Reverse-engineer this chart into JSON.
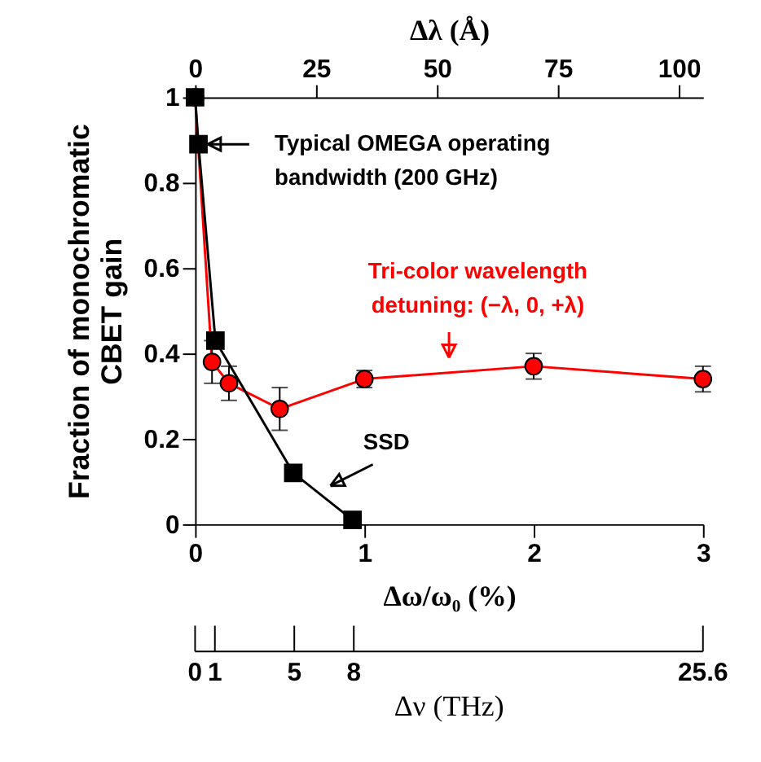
{
  "chart_data": {
    "type": "line",
    "xlabel": "Δω/ω₀ (%)",
    "ylabel": "Fraction of monochromatic\nCBET gain",
    "x2label": "Δλ (Å)",
    "xlim": [
      0,
      3
    ],
    "xticks": [
      0,
      1,
      2,
      3
    ],
    "ylim": [
      0,
      1
    ],
    "yticks": [
      0,
      0.2,
      0.4,
      0.6,
      0.8,
      1
    ],
    "x2lim": [
      0,
      105
    ],
    "x2ticks": [
      0,
      25,
      50,
      75,
      100
    ],
    "series": [
      {
        "color": "#ff0000",
        "marker": "circle",
        "x": [
          0,
          0.1,
          0.2,
          0.5,
          1,
          2,
          3
        ],
        "values": [
          1.0,
          0.38,
          0.33,
          0.27,
          0.34,
          0.37,
          0.34
        ],
        "errors": [
          null,
          0.05,
          0.04,
          0.05,
          0.02,
          0.03,
          0.03
        ]
      },
      {
        "color": "#000000",
        "marker": "square",
        "x": [
          0,
          0.02,
          0.12,
          0.58,
          0.93
        ],
        "values": [
          1.0,
          0.89,
          0.43,
          0.12,
          0.01
        ]
      }
    ],
    "annotations": [
      {
        "text": "Typical OMEGA operating\nbandwidth (200 GHz)",
        "x": 0.02,
        "y": 0.89
      },
      {
        "text": "SSD",
        "x": 0.75,
        "y": 0.07
      },
      {
        "text": "Tri-color wavelength\ndetuning: (−λ, 0, +λ)",
        "x": 1.5,
        "y": 0.37
      },
      {
        "text": "0",
        "x": 0
      },
      {
        "text": "1",
        "x": 0.117
      },
      {
        "text": "5",
        "x": 0.586
      },
      {
        "text": "8",
        "x": 0.9375
      },
      {
        "text": "25.6",
        "x": 3
      },
      "Δν (THz)"
    ],
    "grid": false,
    "line_style": "solid"
  }
}
